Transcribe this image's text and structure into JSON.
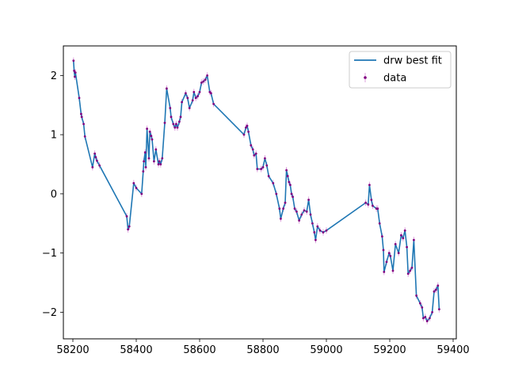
{
  "chart_data": {
    "type": "line",
    "title": "",
    "xlabel": "",
    "ylabel": "",
    "xlim": [
      58170,
      59410
    ],
    "ylim": [
      -2.45,
      2.5
    ],
    "x_ticks": [
      58200,
      58400,
      58600,
      58800,
      59000,
      59200,
      59400
    ],
    "y_ticks": [
      -2,
      -1,
      0,
      1,
      2
    ],
    "grid": false,
    "legend": {
      "placement": "top-right",
      "entries": [
        {
          "label": "drw best fit",
          "marker": "line",
          "color": "#1f77b4"
        },
        {
          "label": "data",
          "marker": "errorbar-point",
          "color": "#800080"
        }
      ]
    },
    "colors": {
      "fit": "#1f77b4",
      "data_marker": "#800080",
      "errorbar": "#dda0dd"
    },
    "series": [
      {
        "name": "drw best fit",
        "x": [
          58202,
          58204,
          58206,
          58208,
          58220,
          58226,
          58228,
          58234,
          58238,
          58262,
          58269,
          58272,
          58276,
          58284,
          58370,
          58374,
          58378,
          58392,
          58400,
          58417,
          58422,
          58424,
          58428,
          58430,
          58434,
          58440,
          58443,
          58447,
          58450,
          58456,
          58462,
          58470,
          58473,
          58477,
          58482,
          58490,
          58496,
          58507,
          58510,
          58517,
          58522,
          58526,
          58530,
          58536,
          58540,
          58544,
          58556,
          58562,
          58568,
          58578,
          58582,
          58588,
          58594,
          58600,
          58606,
          58612,
          58618,
          58624,
          58632,
          58636,
          58644,
          58740,
          58746,
          58750,
          58754,
          58762,
          58768,
          58772,
          58778,
          58782,
          58794,
          58800,
          58806,
          58812,
          58818,
          58832,
          58842,
          58852,
          58856,
          58864,
          58870,
          58874,
          58878,
          58882,
          58886,
          58890,
          58894,
          58900,
          58906,
          58914,
          58922,
          58930,
          58938,
          58944,
          58950,
          58956,
          58962,
          58966,
          58972,
          58980,
          58990,
          59000,
          59124,
          59132,
          59136,
          59142,
          59146,
          59158,
          59162,
          59168,
          59176,
          59180,
          59182,
          59190,
          59198,
          59202,
          59210,
          59218,
          59228,
          59236,
          59242,
          59248,
          59254,
          59258,
          59264,
          59270,
          59276,
          59284,
          59296,
          59302,
          59306,
          59312,
          59318,
          59326,
          59334,
          59340,
          59346,
          59352,
          59356
        ],
        "y": [
          2.25,
          2.08,
          1.98,
          2.05,
          1.62,
          1.35,
          1.3,
          1.18,
          0.97,
          0.45,
          0.68,
          0.62,
          0.56,
          0.48,
          -0.38,
          -0.6,
          -0.55,
          0.18,
          0.1,
          0.0,
          0.38,
          0.55,
          0.7,
          0.45,
          1.1,
          0.6,
          1.05,
          0.98,
          0.92,
          0.55,
          0.75,
          0.5,
          0.55,
          0.5,
          0.6,
          1.2,
          1.78,
          1.45,
          1.3,
          1.18,
          1.12,
          1.18,
          1.12,
          1.22,
          1.3,
          1.55,
          1.7,
          1.62,
          1.45,
          1.58,
          1.72,
          1.62,
          1.65,
          1.72,
          1.88,
          1.9,
          1.93,
          2.0,
          1.72,
          1.7,
          1.52,
          1.0,
          1.12,
          1.15,
          1.05,
          0.82,
          0.75,
          0.65,
          0.68,
          0.42,
          0.42,
          0.45,
          0.6,
          0.48,
          0.3,
          0.18,
          0.0,
          -0.25,
          -0.42,
          -0.25,
          -0.15,
          0.4,
          0.3,
          0.2,
          0.15,
          0.0,
          -0.05,
          -0.25,
          -0.3,
          -0.45,
          -0.35,
          -0.28,
          -0.3,
          -0.1,
          -0.35,
          -0.5,
          -0.65,
          -0.78,
          -0.55,
          -0.62,
          -0.65,
          -0.62,
          -0.15,
          -0.18,
          0.15,
          -0.1,
          -0.2,
          -0.25,
          -0.25,
          -0.5,
          -0.72,
          -0.95,
          -1.32,
          -1.15,
          -1.0,
          -1.05,
          -1.3,
          -0.85,
          -1.0,
          -0.7,
          -0.75,
          -0.62,
          -0.9,
          -1.35,
          -1.3,
          -1.25,
          -0.78,
          -1.72,
          -1.85,
          -1.92,
          -2.1,
          -2.08,
          -2.15,
          -2.1,
          -2.0,
          -1.65,
          -1.62,
          -1.55,
          -1.95
        ]
      },
      {
        "name": "data",
        "x": [
          58202,
          58204,
          58206,
          58208,
          58220,
          58226,
          58228,
          58234,
          58238,
          58262,
          58269,
          58272,
          58276,
          58284,
          58370,
          58374,
          58378,
          58392,
          58400,
          58417,
          58422,
          58424,
          58428,
          58430,
          58434,
          58440,
          58443,
          58447,
          58450,
          58456,
          58462,
          58470,
          58473,
          58477,
          58482,
          58490,
          58496,
          58507,
          58510,
          58517,
          58522,
          58526,
          58530,
          58536,
          58540,
          58544,
          58556,
          58562,
          58568,
          58578,
          58582,
          58588,
          58594,
          58600,
          58606,
          58612,
          58618,
          58624,
          58632,
          58636,
          58644,
          58740,
          58746,
          58750,
          58754,
          58762,
          58768,
          58772,
          58778,
          58782,
          58794,
          58800,
          58806,
          58812,
          58818,
          58832,
          58842,
          58852,
          58856,
          58864,
          58870,
          58874,
          58878,
          58882,
          58886,
          58890,
          58894,
          58900,
          58906,
          58914,
          58922,
          58930,
          58938,
          58944,
          58950,
          58956,
          58962,
          58966,
          58972,
          58980,
          58990,
          59000,
          59124,
          59132,
          59136,
          59142,
          59146,
          59158,
          59162,
          59168,
          59176,
          59180,
          59182,
          59190,
          59198,
          59202,
          59210,
          59218,
          59228,
          59236,
          59242,
          59248,
          59254,
          59258,
          59264,
          59270,
          59276,
          59284,
          59296,
          59302,
          59306,
          59312,
          59318,
          59326,
          59334,
          59340,
          59346,
          59352,
          59356
        ],
        "y": [
          2.25,
          2.08,
          1.98,
          2.05,
          1.62,
          1.35,
          1.3,
          1.18,
          0.97,
          0.45,
          0.68,
          0.62,
          0.56,
          0.48,
          -0.38,
          -0.6,
          -0.55,
          0.18,
          0.1,
          0.0,
          0.38,
          0.55,
          0.7,
          0.45,
          1.1,
          0.6,
          1.05,
          0.98,
          0.92,
          0.55,
          0.75,
          0.5,
          0.55,
          0.5,
          0.6,
          1.2,
          1.78,
          1.45,
          1.3,
          1.18,
          1.12,
          1.18,
          1.12,
          1.22,
          1.3,
          1.55,
          1.7,
          1.62,
          1.45,
          1.58,
          1.72,
          1.62,
          1.65,
          1.72,
          1.88,
          1.9,
          1.93,
          2.0,
          1.72,
          1.7,
          1.52,
          1.0,
          1.12,
          1.15,
          1.05,
          0.82,
          0.75,
          0.65,
          0.68,
          0.42,
          0.42,
          0.45,
          0.6,
          0.48,
          0.3,
          0.18,
          0.0,
          -0.25,
          -0.42,
          -0.25,
          -0.15,
          0.4,
          0.3,
          0.2,
          0.15,
          0.0,
          -0.05,
          -0.25,
          -0.3,
          -0.45,
          -0.35,
          -0.28,
          -0.3,
          -0.1,
          -0.35,
          -0.5,
          -0.65,
          -0.78,
          -0.55,
          -0.62,
          -0.65,
          -0.62,
          -0.15,
          -0.18,
          0.15,
          -0.1,
          -0.2,
          -0.25,
          -0.25,
          -0.5,
          -0.72,
          -0.95,
          -1.32,
          -1.15,
          -1.0,
          -1.05,
          -1.3,
          -0.85,
          -1.0,
          -0.7,
          -0.75,
          -0.62,
          -0.9,
          -1.35,
          -1.3,
          -1.25,
          -0.78,
          -1.72,
          -1.85,
          -1.92,
          -2.1,
          -2.08,
          -2.15,
          -2.1,
          -2.0,
          -1.65,
          -1.62,
          -1.55,
          -1.95
        ]
      }
    ]
  }
}
